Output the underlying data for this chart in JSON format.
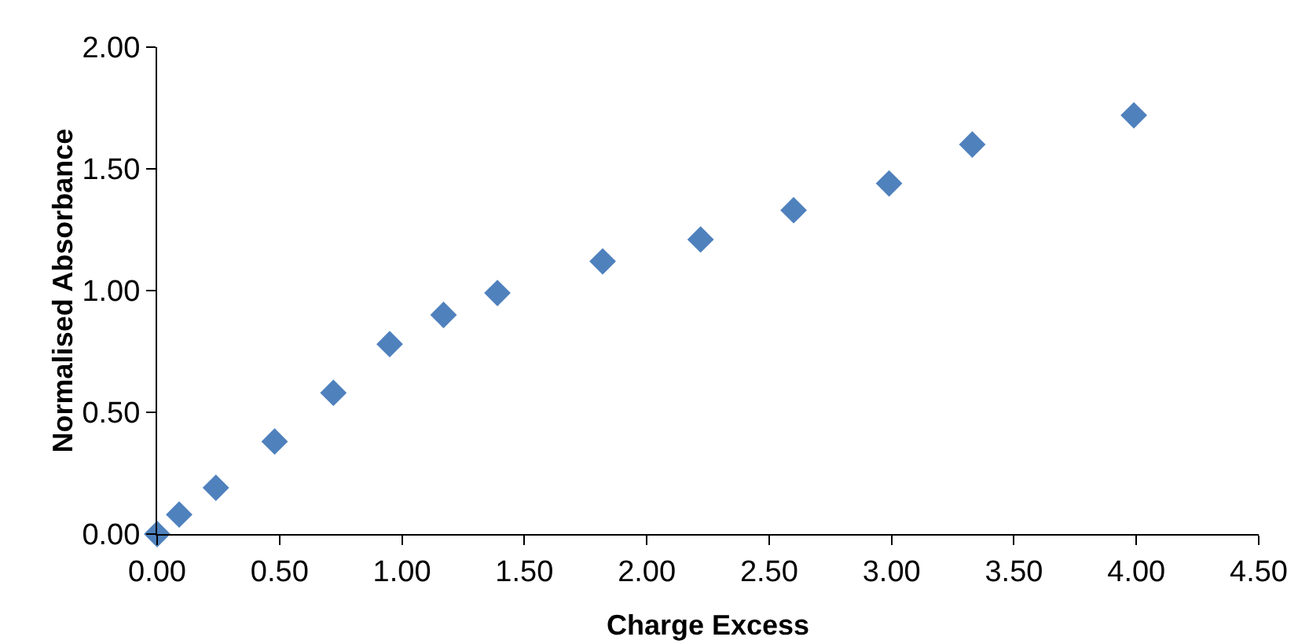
{
  "chart_data": {
    "type": "scatter",
    "xlabel": "Charge Excess",
    "ylabel": "Normalised Absorbance",
    "x": [
      0,
      0.09,
      0.24,
      0.48,
      0.72,
      0.95,
      1.17,
      1.39,
      1.82,
      2.22,
      2.6,
      2.99,
      3.33,
      3.99
    ],
    "series": [
      {
        "color": "#4f81bd",
        "values": [
          0,
          0.08,
          0.19,
          0.38,
          0.58,
          0.78,
          0.9,
          0.99,
          1.12,
          1.21,
          1.33,
          1.44,
          1.6,
          1.72
        ]
      }
    ],
    "xlim": [
      0,
      4.5
    ],
    "xticks": [
      {
        "value": 0,
        "label": "0.00"
      },
      {
        "value": 0.5,
        "label": "0.50"
      },
      {
        "value": 1,
        "label": "1.00"
      },
      {
        "value": 1.5,
        "label": "1.50"
      },
      {
        "value": 2,
        "label": "2.00"
      },
      {
        "value": 2.5,
        "label": "2.50"
      },
      {
        "value": 3,
        "label": "3.00"
      },
      {
        "value": 3.5,
        "label": "3.50"
      },
      {
        "value": 4,
        "label": "4.00"
      },
      {
        "value": 4.5,
        "label": "4.50"
      }
    ],
    "ylim": [
      0,
      2
    ],
    "yticks": [
      {
        "value": 0,
        "label": "0.00"
      },
      {
        "value": 0.5,
        "label": "0.50"
      },
      {
        "value": 1,
        "label": "1.00"
      },
      {
        "value": 1.5,
        "label": "1.50"
      },
      {
        "value": 2,
        "label": "2.00"
      }
    ],
    "grid": false,
    "marker": "diamond"
  }
}
